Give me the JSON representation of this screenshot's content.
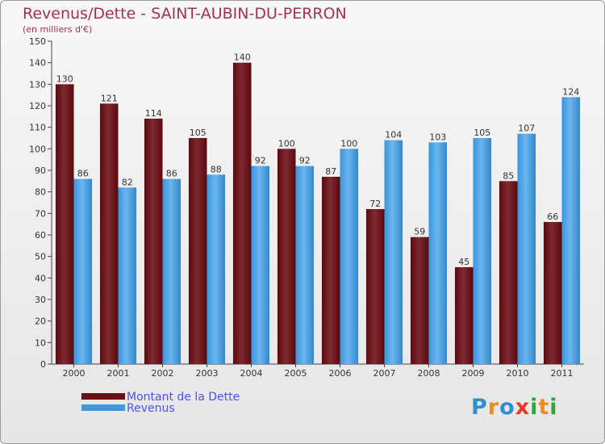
{
  "header": {
    "title": "Revenus/Dette - SAINT-AUBIN-DU-PERRON",
    "subtitle": "(en milliers d'€)"
  },
  "legend": {
    "items": [
      {
        "label": "Montant de la Dette",
        "color": "#6b0f16"
      },
      {
        "label": "Revenus",
        "color": "#3d9ae0"
      }
    ]
  },
  "logo": {
    "letters": [
      {
        "char": "P",
        "color": "#2f8fd0"
      },
      {
        "char": "r",
        "color": "#f08a1c"
      },
      {
        "char": "o",
        "color": "#2f8fd0"
      },
      {
        "char": "x",
        "color": "#e23b2e"
      },
      {
        "char": "i",
        "color": "#2fa63a"
      },
      {
        "char": "t",
        "color": "#f08a1c"
      },
      {
        "char": "i",
        "color": "#2fa63a"
      }
    ]
  },
  "chart_data": {
    "type": "bar",
    "title": "Revenus/Dette - SAINT-AUBIN-DU-PERRON",
    "ylabel": "(en milliers d'€)",
    "xlabel": "",
    "categories": [
      "2000",
      "2001",
      "2002",
      "2003",
      "2004",
      "2005",
      "2006",
      "2007",
      "2008",
      "2009",
      "2010",
      "2011"
    ],
    "series": [
      {
        "name": "Montant de la Dette",
        "color": "#6b0f16",
        "values": [
          130,
          121,
          114,
          105,
          140,
          100,
          87,
          72,
          59,
          45,
          85,
          66
        ]
      },
      {
        "name": "Revenus",
        "color": "#3d9ae0",
        "values": [
          86,
          82,
          86,
          88,
          92,
          92,
          100,
          104,
          103,
          105,
          107,
          124
        ]
      }
    ],
    "ylim": [
      0,
      150
    ],
    "yticks": [
      0,
      10,
      20,
      30,
      40,
      50,
      60,
      70,
      80,
      90,
      100,
      110,
      120,
      130,
      140,
      150
    ],
    "grid": false,
    "legend_position": "bottom-left"
  }
}
